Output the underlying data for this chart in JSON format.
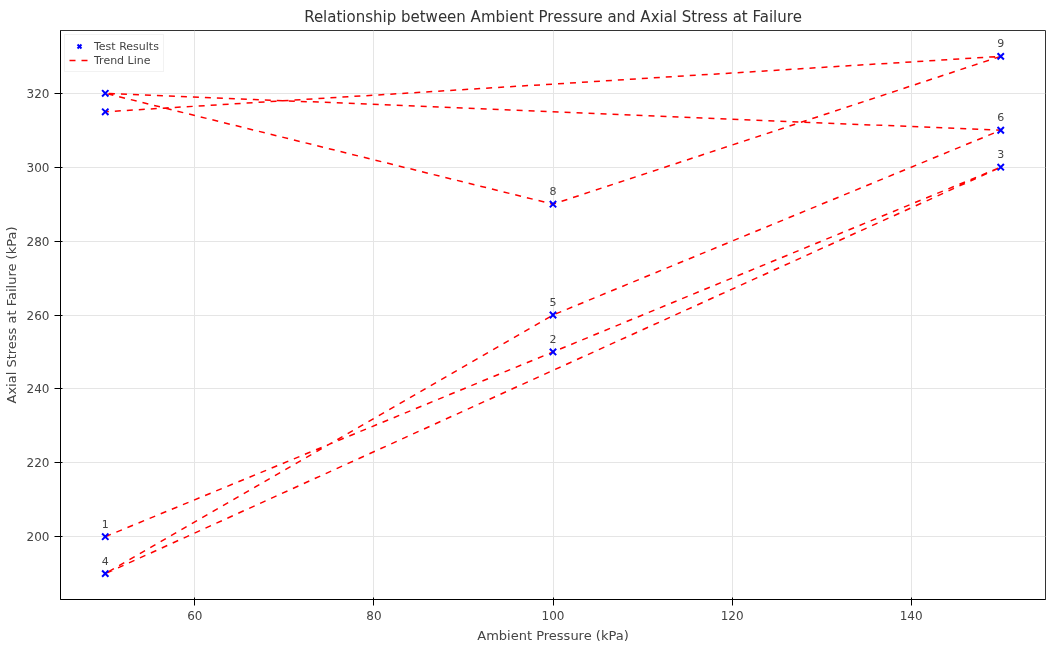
{
  "chart_data": {
    "type": "scatter",
    "title": "Relationship between Ambient Pressure and Axial Stress at Failure",
    "xlabel": "Ambient Pressure (kPa)",
    "ylabel": "Axial Stress at Failure (kPa)",
    "x": [
      50,
      100,
      150,
      50,
      100,
      150,
      50,
      100,
      150,
      50
    ],
    "series": [
      {
        "name": "Test Results",
        "color": "#0000ff",
        "marker": "cross",
        "values": [
          200,
          250,
          300,
          190,
          260,
          310,
          320,
          290,
          330,
          315
        ]
      },
      {
        "name": "Trend Line",
        "type": "line",
        "color": "#ff0000",
        "line_style": "dashed",
        "marker": "none",
        "values": [
          200,
          250,
          300,
          190,
          260,
          310,
          320,
          290,
          330,
          315
        ]
      }
    ],
    "annotations": [
      {
        "text": "1",
        "x": 50,
        "y": 200
      },
      {
        "text": "2",
        "x": 100,
        "y": 250
      },
      {
        "text": "3",
        "x": 150,
        "y": 300
      },
      {
        "text": "4",
        "x": 50,
        "y": 190
      },
      {
        "text": "5",
        "x": 100,
        "y": 260
      },
      {
        "text": "6",
        "x": 150,
        "y": 310
      },
      {
        "text": "8",
        "x": 100,
        "y": 290
      },
      {
        "text": "9",
        "x": 150,
        "y": 330
      }
    ],
    "xlim": [
      45,
      155
    ],
    "ylim": [
      183,
      337
    ],
    "xticks": [
      60,
      80,
      100,
      120,
      140
    ],
    "yticks": [
      200,
      220,
      240,
      260,
      280,
      300,
      320
    ],
    "grid": true,
    "legend": "top left"
  }
}
